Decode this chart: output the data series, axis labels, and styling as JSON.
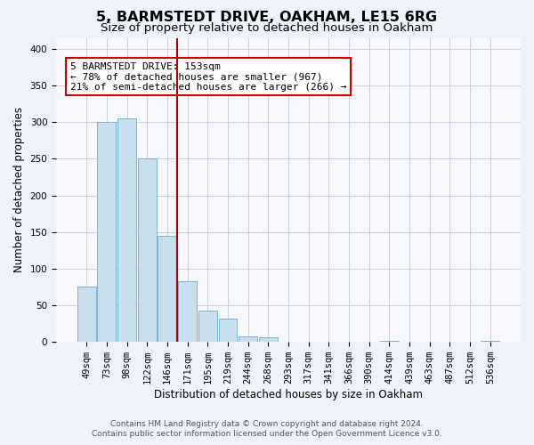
{
  "title": "5, BARMSTEDT DRIVE, OAKHAM, LE15 6RG",
  "subtitle": "Size of property relative to detached houses in Oakham",
  "xlabel": "Distribution of detached houses by size in Oakham",
  "ylabel": "Number of detached properties",
  "bar_labels": [
    "49sqm",
    "73sqm",
    "98sqm",
    "122sqm",
    "146sqm",
    "171sqm",
    "195sqm",
    "219sqm",
    "244sqm",
    "268sqm",
    "293sqm",
    "317sqm",
    "341sqm",
    "366sqm",
    "390sqm",
    "414sqm",
    "439sqm",
    "463sqm",
    "487sqm",
    "512sqm",
    "536sqm"
  ],
  "bar_heights": [
    75,
    300,
    305,
    250,
    145,
    83,
    43,
    32,
    8,
    6,
    0,
    0,
    0,
    0,
    0,
    2,
    0,
    0,
    0,
    0,
    2
  ],
  "bar_color": "#c8dff0",
  "bar_edge_color": "#7ab4d4",
  "vline_x_idx": 4,
  "vline_color": "#aa0000",
  "annotation_lines": [
    "5 BARMSTEDT DRIVE: 153sqm",
    "← 78% of detached houses are smaller (967)",
    "21% of semi-detached houses are larger (266) →"
  ],
  "annotation_box_color": "#ffffff",
  "annotation_box_edge": "#cc0000",
  "ylim": [
    0,
    415
  ],
  "yticks": [
    0,
    50,
    100,
    150,
    200,
    250,
    300,
    350,
    400
  ],
  "footer_line1": "Contains HM Land Registry data © Crown copyright and database right 2024.",
  "footer_line2": "Contains public sector information licensed under the Open Government Licence v3.0.",
  "title_fontsize": 11.5,
  "subtitle_fontsize": 9.5,
  "axis_label_fontsize": 8.5,
  "tick_fontsize": 7.5,
  "annotation_fontsize": 8,
  "footer_fontsize": 6.5,
  "background_color": "#eef2fb",
  "plot_bg_color": "#f7f9ff"
}
